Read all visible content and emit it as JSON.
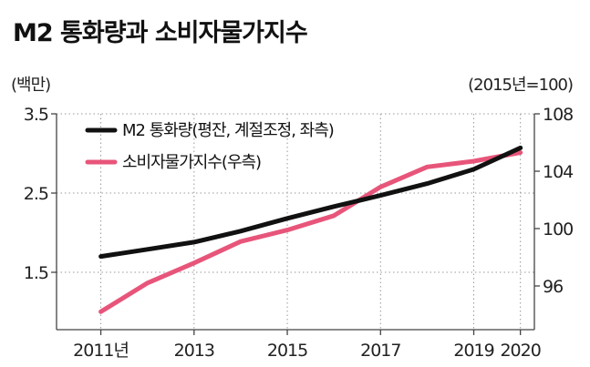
{
  "chart_data": {
    "type": "line",
    "title": "M2 통화량과 소비자물가지수",
    "left_axis": {
      "unit_label": "(백만)",
      "ticks": [
        "3.5",
        "2.5",
        "1.5"
      ],
      "ylim": [
        1.5,
        3.5
      ]
    },
    "right_axis": {
      "unit_label": "(2015년=100)",
      "ticks": [
        "108",
        "104",
        "100",
        "96"
      ],
      "ylim": [
        96,
        108
      ]
    },
    "x_ticks": [
      "2011년",
      "2013",
      "2015",
      "2017",
      "2019",
      "2020"
    ],
    "x": [
      2011,
      2012,
      2013,
      2014,
      2015,
      2016,
      2017,
      2018,
      2019,
      2020
    ],
    "grid": true,
    "legend_position": "top-left",
    "series": [
      {
        "name": "M2 통화량(평잔, 계절조정, 좌측)",
        "axis": "left",
        "color": "#111111",
        "values": [
          1.7,
          1.79,
          1.88,
          2.02,
          2.18,
          2.33,
          2.47,
          2.62,
          2.8,
          3.07
        ]
      },
      {
        "name": "소비자물가지수(우측)",
        "axis": "right",
        "color": "#e8557a",
        "values": [
          94.2,
          96.2,
          97.6,
          99.1,
          99.9,
          100.9,
          102.9,
          104.3,
          104.7,
          105.3
        ]
      }
    ]
  }
}
